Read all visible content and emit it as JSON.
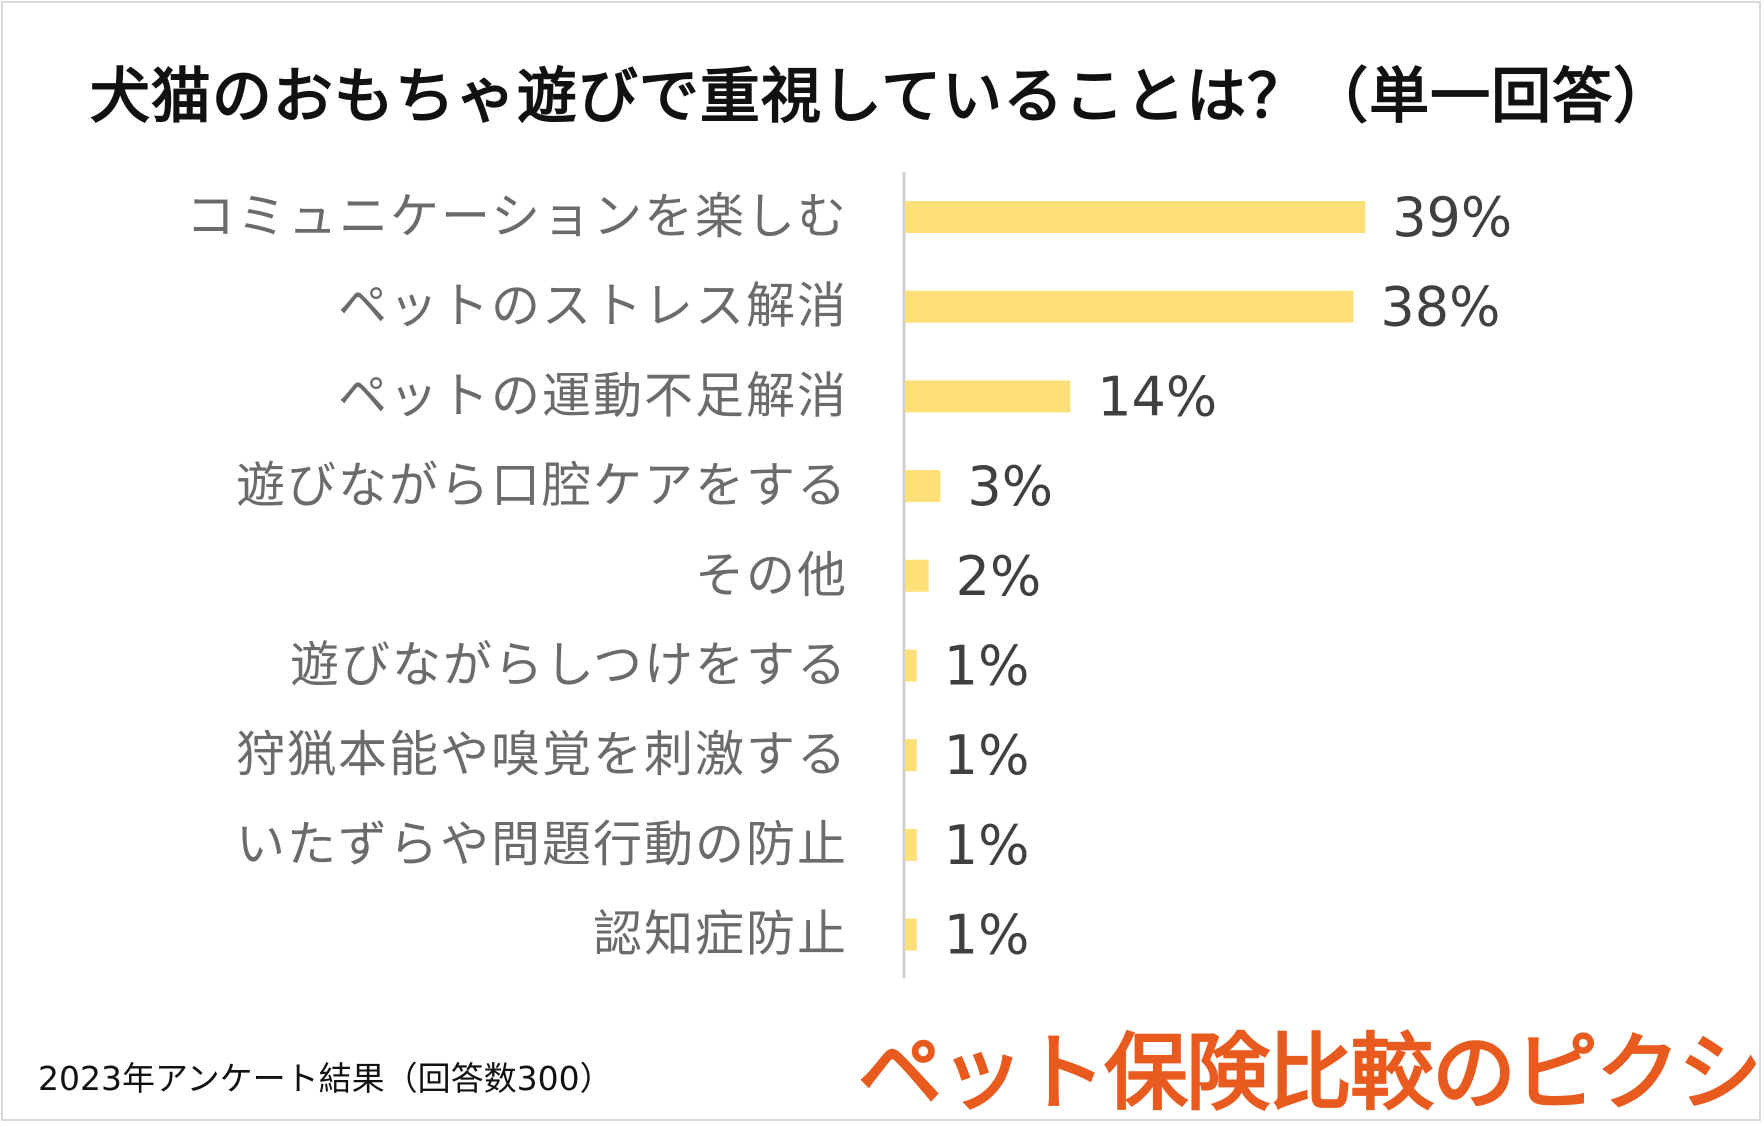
{
  "title": "犬猫のおもちゃ遊びで重視していることは？（単一回答）",
  "footnote": "2023年アンケート結果（回答数300）",
  "logo_text": "ペット保険比較のピクシー",
  "colors": {
    "bar": "#ffdf78",
    "label_text": "#6b6b6b",
    "value_text": "#404040",
    "axis": "#d0d0d0",
    "logo": "#e85a1e"
  },
  "chart_data": {
    "type": "bar",
    "orientation": "horizontal",
    "categories": [
      "コミュニケーションを楽しむ",
      "ペットのストレス解消",
      "ペットの運動不足解消",
      "遊びながら口腔ケアをする",
      "その他",
      "遊びながらしつけをする",
      "狩猟本能や嗅覚を刺激する",
      "いたずらや問題行動の防止",
      "認知症防止"
    ],
    "values": [
      39,
      38,
      14,
      3,
      2,
      1,
      1,
      1,
      1
    ],
    "value_labels": [
      "39%",
      "38%",
      "14%",
      "3%",
      "2%",
      "1%",
      "1%",
      "1%",
      "1%"
    ],
    "unit": "%",
    "title": "犬猫のおもちゃ遊びで重視していることは？（単一回答）",
    "xlabel": "",
    "ylabel": "",
    "grid": false,
    "legend": "none"
  }
}
